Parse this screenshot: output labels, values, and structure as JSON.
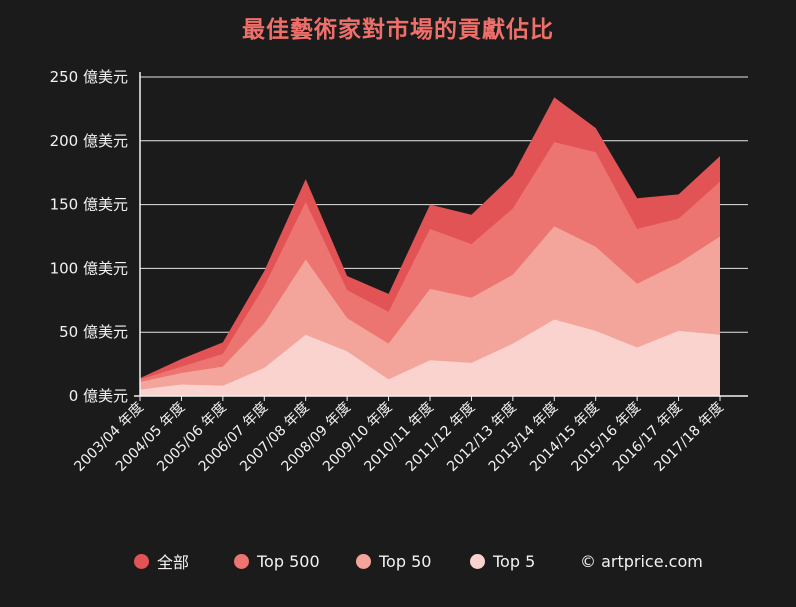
{
  "chart_data": {
    "type": "area",
    "title": "最佳藝術家對市場的貢獻佔比",
    "xlabel": "",
    "ylabel": "",
    "ylim": [
      0,
      250
    ],
    "y_ticks": [
      0,
      50,
      100,
      150,
      200,
      250
    ],
    "y_tick_labels": [
      "0 億美元",
      "50 億美元",
      "100 億美元",
      "150 億美元",
      "200 億美元",
      "250 億美元"
    ],
    "categories": [
      "2003/04 年度",
      "2004/05 年度",
      "2005/06 年度",
      "2006/07 年度",
      "2007/08 年度",
      "2008/09 年度",
      "2009/10 年度",
      "2010/11 年度",
      "2011/12 年度",
      "2012/13 年度",
      "2013/14 年度",
      "2014/15 年度",
      "2015/16 年度",
      "2016/17 年度",
      "2017/18 年度"
    ],
    "grid": true,
    "legend_position": "bottom",
    "series": [
      {
        "name": "全部",
        "color": "#e15355",
        "values": [
          14,
          29,
          42,
          98,
          170,
          94,
          80,
          150,
          142,
          173,
          234,
          210,
          155,
          158,
          188
        ]
      },
      {
        "name": "Top 500",
        "color": "#ec7471",
        "values": [
          13,
          23,
          33,
          86,
          152,
          83,
          66,
          131,
          119,
          147,
          199,
          191,
          131,
          139,
          168
        ]
      },
      {
        "name": "Top 50",
        "color": "#f3a49b",
        "values": [
          11,
          18,
          23,
          57,
          107,
          61,
          41,
          84,
          77,
          95,
          133,
          117,
          88,
          104,
          125
        ]
      },
      {
        "name": "Top 5",
        "color": "#fad3cf",
        "values": [
          5,
          9,
          8,
          22,
          48,
          35,
          13,
          28,
          26,
          41,
          60,
          51,
          38,
          51,
          48
        ]
      }
    ]
  },
  "legend": {
    "items": [
      {
        "label": "全部",
        "color": "#e15355"
      },
      {
        "label": "Top 500",
        "color": "#ec7471"
      },
      {
        "label": "Top 50",
        "color": "#f3a49b"
      },
      {
        "label": "Top 5",
        "color": "#fad3cf"
      }
    ],
    "credit": "© artprice.com"
  }
}
